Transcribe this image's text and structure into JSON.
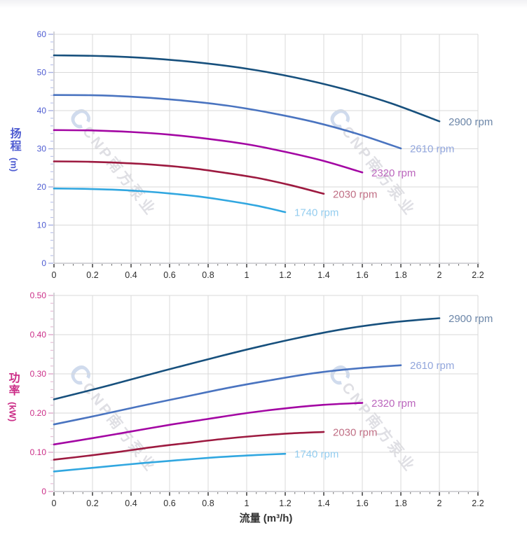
{
  "x_axis": {
    "title": "流量 (m³/h)",
    "min": 0,
    "max": 2.2,
    "major_step": 0.2,
    "minor_step": 0.05,
    "tick_labels": [
      "0",
      "0.2",
      "0.4",
      "0.6",
      "0.8",
      "1",
      "1.2",
      "1.4",
      "1.6",
      "1.8",
      "2",
      "2.2"
    ],
    "label_color": "#2e2e2e",
    "title_color": "#333333"
  },
  "style": {
    "grid_color": "#d9d9d9",
    "axis_line_color": "#a9a9b2",
    "x_tick_color": "#2e2e2e",
    "x_tick_minor_color": "#6a6a6a"
  },
  "watermark": {
    "logo": "C",
    "text": "CNP南方泵业"
  },
  "chart_data": [
    {
      "type": "line",
      "name": "head-curve-chart",
      "ylabel_main": "扬程",
      "ylabel_unit": "(m)",
      "ylabel": "扬程 (m)",
      "xlabel": "流量 (m³/h)",
      "xlim": [
        0,
        2.2
      ],
      "ylim": [
        0,
        60
      ],
      "y_major_step": 10,
      "y_minor_step": 2,
      "y_tick_labels": [
        "0",
        "10",
        "20",
        "30",
        "40",
        "50",
        "60"
      ],
      "axis_text_color": "#4d5bd1",
      "tick_color": "#a7b0e2",
      "tick_minor_color": "#bcc4ec",
      "grid": true,
      "legend_position": "right-of-curve-end",
      "series": [
        {
          "name": "2900 rpm",
          "color": "#17507d",
          "label_color": "#6c86a8",
          "points": [
            [
              0,
              54.5
            ],
            [
              0.25,
              54.3
            ],
            [
              0.5,
              53.7
            ],
            [
              0.75,
              52.6
            ],
            [
              1,
              51
            ],
            [
              1.25,
              48.7
            ],
            [
              1.5,
              45.7
            ],
            [
              1.75,
              41.9
            ],
            [
              2,
              37.2
            ]
          ]
        },
        {
          "name": "2610 rpm",
          "color": "#4a74c0",
          "label_color": "#92a6dc",
          "points": [
            [
              0,
              44.1
            ],
            [
              0.225,
              44
            ],
            [
              0.45,
              43.5
            ],
            [
              0.675,
              42.6
            ],
            [
              0.9,
              41.3
            ],
            [
              1.125,
              39.4
            ],
            [
              1.35,
              37
            ],
            [
              1.575,
              33.9
            ],
            [
              1.8,
              30.1
            ]
          ]
        },
        {
          "name": "2320 rpm",
          "color": "#a306a3",
          "label_color": "#bb66bd",
          "points": [
            [
              0,
              34.9
            ],
            [
              0.2,
              34.8
            ],
            [
              0.4,
              34.4
            ],
            [
              0.6,
              33.7
            ],
            [
              0.8,
              32.6
            ],
            [
              1,
              31.2
            ],
            [
              1.2,
              29.2
            ],
            [
              1.4,
              26.8
            ],
            [
              1.6,
              23.8
            ]
          ]
        },
        {
          "name": "2030 rpm",
          "color": "#9d1a40",
          "label_color": "#c06f85",
          "points": [
            [
              0,
              26.7
            ],
            [
              0.175,
              26.6
            ],
            [
              0.35,
              26.3
            ],
            [
              0.525,
              25.8
            ],
            [
              0.7,
              25
            ],
            [
              0.875,
              23.8
            ],
            [
              1.05,
              22.4
            ],
            [
              1.225,
              20.5
            ],
            [
              1.4,
              18.2
            ]
          ]
        },
        {
          "name": "1740 rpm",
          "color": "#31a7e0",
          "label_color": "#94cdef",
          "points": [
            [
              0,
              19.6
            ],
            [
              0.15,
              19.5
            ],
            [
              0.3,
              19.3
            ],
            [
              0.45,
              18.9
            ],
            [
              0.6,
              18.3
            ],
            [
              0.75,
              17.5
            ],
            [
              0.9,
              16.4
            ],
            [
              1.05,
              15.1
            ],
            [
              1.2,
              13.4
            ]
          ]
        }
      ]
    },
    {
      "type": "line",
      "name": "power-curve-chart",
      "ylabel_main": "功率",
      "ylabel_unit": "(kW)",
      "ylabel": "功率 (kW)",
      "xlabel": "流量 (m³/h)",
      "xlim": [
        0,
        2.2
      ],
      "ylim": [
        0,
        0.5
      ],
      "y_major_step": 0.1,
      "y_minor_step": 0.02,
      "y_tick_labels": [
        "0",
        "0.10",
        "0.20",
        "0.30",
        "0.40",
        "0.50"
      ],
      "axis_text_color": "#cb2d87",
      "tick_color": "#dfa9cb",
      "tick_minor_color": "#e8bed7",
      "grid": true,
      "legend_position": "right-of-curve-end",
      "series": [
        {
          "name": "2900 rpm",
          "color": "#17507d",
          "label_color": "#6c86a8",
          "points": [
            [
              0,
              0.235
            ],
            [
              0.25,
              0.266
            ],
            [
              0.5,
              0.299
            ],
            [
              0.75,
              0.331
            ],
            [
              1,
              0.362
            ],
            [
              1.25,
              0.39
            ],
            [
              1.5,
              0.414
            ],
            [
              1.75,
              0.431
            ],
            [
              2,
              0.442
            ]
          ]
        },
        {
          "name": "2610 rpm",
          "color": "#4a74c0",
          "label_color": "#92a6dc",
          "points": [
            [
              0,
              0.171
            ],
            [
              0.225,
              0.194
            ],
            [
              0.45,
              0.218
            ],
            [
              0.675,
              0.241
            ],
            [
              0.9,
              0.264
            ],
            [
              1.125,
              0.284
            ],
            [
              1.35,
              0.302
            ],
            [
              1.575,
              0.314
            ],
            [
              1.8,
              0.322
            ]
          ]
        },
        {
          "name": "2320 rpm",
          "color": "#a306a3",
          "label_color": "#bb66bd",
          "points": [
            [
              0,
              0.12
            ],
            [
              0.2,
              0.136
            ],
            [
              0.4,
              0.153
            ],
            [
              0.6,
              0.17
            ],
            [
              0.8,
              0.185
            ],
            [
              1,
              0.2
            ],
            [
              1.2,
              0.212
            ],
            [
              1.4,
              0.221
            ],
            [
              1.6,
              0.226
            ]
          ]
        },
        {
          "name": "2030 rpm",
          "color": "#9d1a40",
          "label_color": "#c06f85",
          "points": [
            [
              0,
              0.081
            ],
            [
              0.175,
              0.091
            ],
            [
              0.35,
              0.102
            ],
            [
              0.525,
              0.114
            ],
            [
              0.7,
              0.124
            ],
            [
              0.875,
              0.134
            ],
            [
              1.05,
              0.142
            ],
            [
              1.225,
              0.148
            ],
            [
              1.4,
              0.152
            ]
          ]
        },
        {
          "name": "1740 rpm",
          "color": "#31a7e0",
          "label_color": "#94cdef",
          "points": [
            [
              0,
              0.051
            ],
            [
              0.15,
              0.058
            ],
            [
              0.3,
              0.065
            ],
            [
              0.45,
              0.072
            ],
            [
              0.6,
              0.078
            ],
            [
              0.75,
              0.084
            ],
            [
              0.9,
              0.089
            ],
            [
              1.05,
              0.093
            ],
            [
              1.2,
              0.096
            ]
          ]
        }
      ]
    }
  ]
}
